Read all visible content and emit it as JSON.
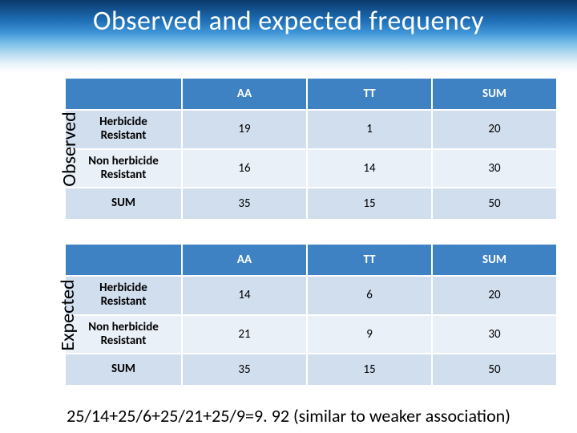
{
  "title": "Observed and expected frequency",
  "footer": "25/14+25/6+25/21+25/9=9. 92 (similar to weaker association)",
  "tables": [
    {
      "side_label": "Observed",
      "header_colors": {
        "bg": "#3f82c4",
        "fg": "#ffffff"
      },
      "row_stripe": [
        "#d1deee",
        "#eaf0f8",
        "#d1deee"
      ],
      "columns": [
        "",
        "AA",
        "TT",
        "SUM"
      ],
      "rows": [
        {
          "label": "Herbicide\nResistant",
          "values": [
            "19",
            "1",
            "20"
          ]
        },
        {
          "label": "Non herbicide\nResistant",
          "values": [
            "16",
            "14",
            "30"
          ]
        },
        {
          "label": "SUM",
          "values": [
            "35",
            "15",
            "50"
          ]
        }
      ]
    },
    {
      "side_label": "Expected",
      "header_colors": {
        "bg": "#3f82c4",
        "fg": "#ffffff"
      },
      "row_stripe": [
        "#d1deee",
        "#eaf0f8",
        "#d1deee"
      ],
      "columns": [
        "",
        "AA",
        "TT",
        "SUM"
      ],
      "rows": [
        {
          "label": "Herbicide\nResistant",
          "values": [
            "14",
            "6",
            "20"
          ]
        },
        {
          "label": "Non herbicide\nResistant",
          "values": [
            "21",
            "9",
            "30"
          ]
        },
        {
          "label": "SUM",
          "values": [
            "35",
            "15",
            "50"
          ]
        }
      ]
    }
  ]
}
